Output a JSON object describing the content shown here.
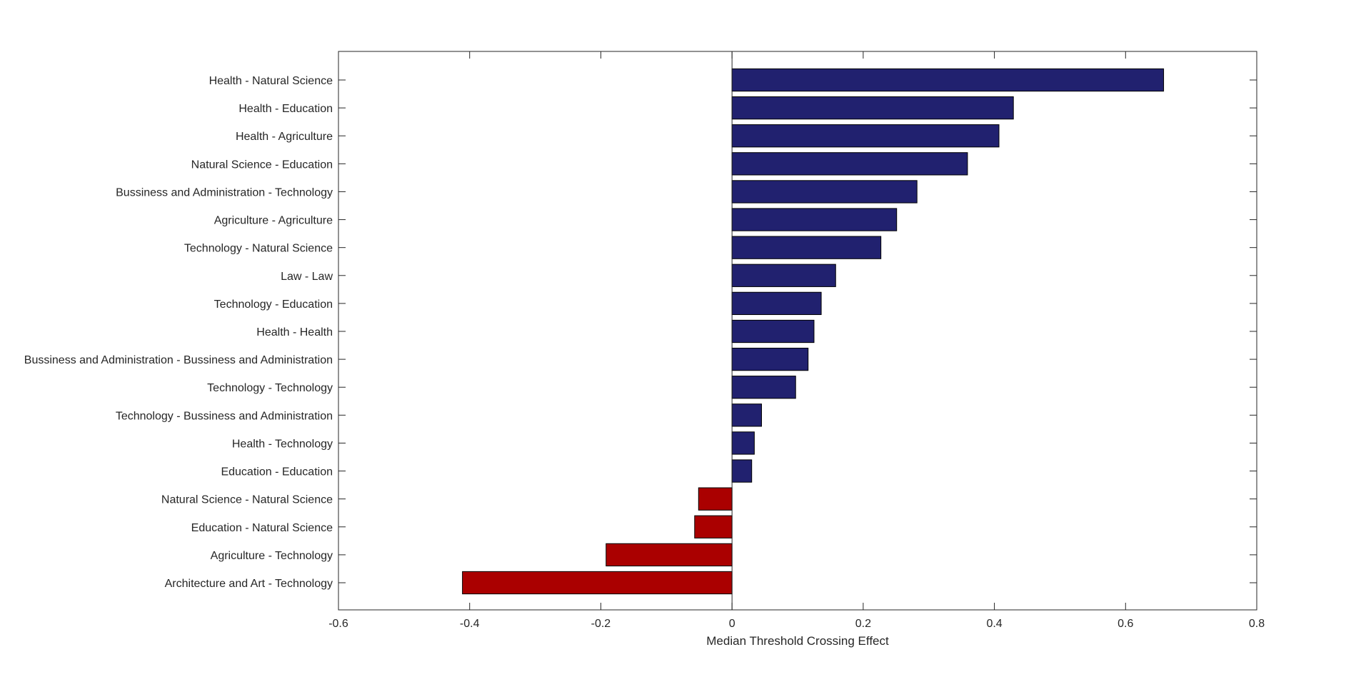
{
  "chart_data": {
    "type": "bar",
    "orientation": "horizontal",
    "title": "",
    "xlabel": "Median Threshold Crossing Effect",
    "ylabel": "",
    "xlim": [
      -0.6,
      0.8
    ],
    "xticks": [
      -0.6,
      -0.4,
      -0.2,
      0,
      0.2,
      0.4,
      0.6,
      0.8
    ],
    "xtick_labels": [
      "-0.6",
      "-0.4",
      "-0.2",
      "0",
      "0.2",
      "0.4",
      "0.6",
      "0.8"
    ],
    "grid": false,
    "colors": {
      "positive": "#21216f",
      "negative": "#aa0000",
      "edge": "#000000"
    },
    "categories": [
      "Health - Natural Science",
      "Health - Education",
      "Health - Agriculture",
      "Natural Science - Education",
      "Bussiness and Administration - Technology",
      "Agriculture - Agriculture",
      "Technology - Natural Science",
      "Law - Law",
      "Technology - Education",
      "Health - Health",
      "Bussiness and Administration - Bussiness and Administration",
      "Technology - Technology",
      "Technology - Bussiness and Administration",
      "Health - Technology",
      "Education - Education",
      "Natural Science - Natural Science",
      "Education - Natural Science",
      "Agriculture - Technology",
      "Architecture and Art - Technology"
    ],
    "values": [
      0.658,
      0.429,
      0.407,
      0.359,
      0.282,
      0.251,
      0.227,
      0.158,
      0.136,
      0.125,
      0.116,
      0.097,
      0.045,
      0.034,
      0.03,
      -0.051,
      -0.057,
      -0.192,
      -0.411
    ]
  }
}
